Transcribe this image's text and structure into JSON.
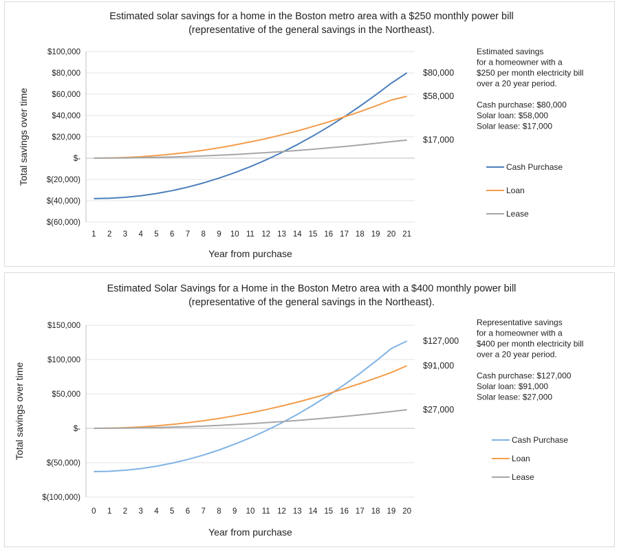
{
  "chart_data": [
    {
      "type": "line",
      "title": "Estimated solar savings for a home in the Boston metro area with a $250 monthly power bill",
      "subtitle": "(representative of the general savings in the Northeast).",
      "xlabel": "Year from purchase",
      "ylabel": "Total savings over time",
      "x": [
        1,
        2,
        3,
        4,
        5,
        6,
        7,
        8,
        9,
        10,
        11,
        12,
        13,
        14,
        15,
        16,
        17,
        18,
        19,
        20,
        21
      ],
      "xticks": [
        "1",
        "2",
        "3",
        "4",
        "5",
        "6",
        "7",
        "8",
        "9",
        "10",
        "11",
        "12",
        "13",
        "14",
        "15",
        "16",
        "17",
        "18",
        "19",
        "20",
        "21"
      ],
      "ylim": [
        -60000,
        100000
      ],
      "yticks": [
        100000,
        80000,
        60000,
        40000,
        20000,
        0,
        -20000,
        -40000,
        -60000
      ],
      "ytick_labels": [
        "$100,000",
        "$80,000",
        "$60,000",
        "$40,000",
        "$20,000",
        "$-",
        "$(20,000)",
        "$(40,000)",
        "$(60,000)"
      ],
      "grid": true,
      "legend_position": "right",
      "series": [
        {
          "name": "Cash Purchase",
          "color": "#4a7ebb",
          "end_label": "$80,000",
          "values": [
            -38000,
            -37700,
            -36800,
            -35300,
            -33200,
            -30500,
            -27200,
            -23300,
            -18800,
            -13700,
            -8000,
            -1700,
            5200,
            12700,
            20800,
            29500,
            38800,
            48700,
            59200,
            70300,
            80000
          ]
        },
        {
          "name": "Loan",
          "color": "#f39c4a",
          "end_label": "$58,000",
          "values": [
            0,
            150,
            600,
            1300,
            2400,
            3800,
            5400,
            7400,
            9700,
            12300,
            15200,
            18300,
            21800,
            25500,
            29600,
            34000,
            38700,
            43600,
            48900,
            54500,
            58000
          ]
        },
        {
          "name": "Lease",
          "color": "#a6a6a6",
          "end_label": "$17,000",
          "values": [
            0,
            40,
            170,
            380,
            680,
            1060,
            1530,
            2080,
            2720,
            3440,
            4250,
            5140,
            6120,
            7190,
            8350,
            9600,
            10930,
            12350,
            13860,
            15470,
            17000
          ]
        }
      ],
      "annotation": [
        "Estimated savings",
        "for a homeowner with a",
        "$250 per month electricity bill",
        "over a 20 year period.",
        "",
        "Cash purchase: $80,000",
        "Solar loan: $58,000",
        "Solar lease: $17,000"
      ]
    },
    {
      "type": "line",
      "title": "Estimated Solar Savings for a Home in the Boston Metro area with a $400 monthly power bill",
      "subtitle": "(representative of the general savings in the Northeast).",
      "xlabel": "Year from purchase",
      "ylabel": "Total savings over time",
      "x": [
        0,
        1,
        2,
        3,
        4,
        5,
        6,
        7,
        8,
        9,
        10,
        11,
        12,
        13,
        14,
        15,
        16,
        17,
        18,
        19,
        20
      ],
      "xticks": [
        "0",
        "1",
        "2",
        "3",
        "4",
        "5",
        "6",
        "7",
        "8",
        "9",
        "10",
        "11",
        "12",
        "13",
        "14",
        "15",
        "16",
        "17",
        "18",
        "19",
        "20"
      ],
      "ylim": [
        -100000,
        150000
      ],
      "yticks": [
        150000,
        100000,
        50000,
        0,
        -50000,
        -100000
      ],
      "ytick_labels": [
        "$150,000",
        "$100,000",
        "$50,000",
        "$-",
        "$(50,000)",
        "$(100,000)"
      ],
      "grid": true,
      "legend_position": "right",
      "series": [
        {
          "name": "Cash Purchase",
          "color": "#7fb2e5",
          "end_label": "$127,000",
          "values": [
            -63000,
            -62500,
            -61000,
            -58600,
            -55100,
            -50700,
            -45300,
            -38900,
            -31500,
            -23100,
            -13800,
            -3400,
            7900,
            20200,
            33600,
            48000,
            63400,
            79900,
            97400,
            116000,
            127000
          ]
        },
        {
          "name": "Loan",
          "color": "#f39c4a",
          "end_label": "$91,000",
          "values": [
            0,
            200,
            900,
            2000,
            3600,
            5600,
            8100,
            11000,
            14400,
            18200,
            22500,
            27200,
            32400,
            38000,
            44100,
            50600,
            57600,
            65000,
            72900,
            81200,
            91000
          ]
        },
        {
          "name": "Lease",
          "color": "#a6a6a6",
          "end_label": "$27,000",
          "values": [
            0,
            70,
            270,
            610,
            1080,
            1690,
            2430,
            3310,
            4320,
            5470,
            6750,
            8170,
            9720,
            11410,
            13230,
            15190,
            17280,
            19510,
            21870,
            24370,
            27000
          ]
        }
      ],
      "annotation": [
        "Representative savings",
        "for a homeowner with a",
        "$400 per month electricity bill",
        "over a 20 year period.",
        "",
        "Cash purchase: $127,000",
        "Solar loan: $91,000",
        "Solar lease: $27,000"
      ]
    }
  ]
}
